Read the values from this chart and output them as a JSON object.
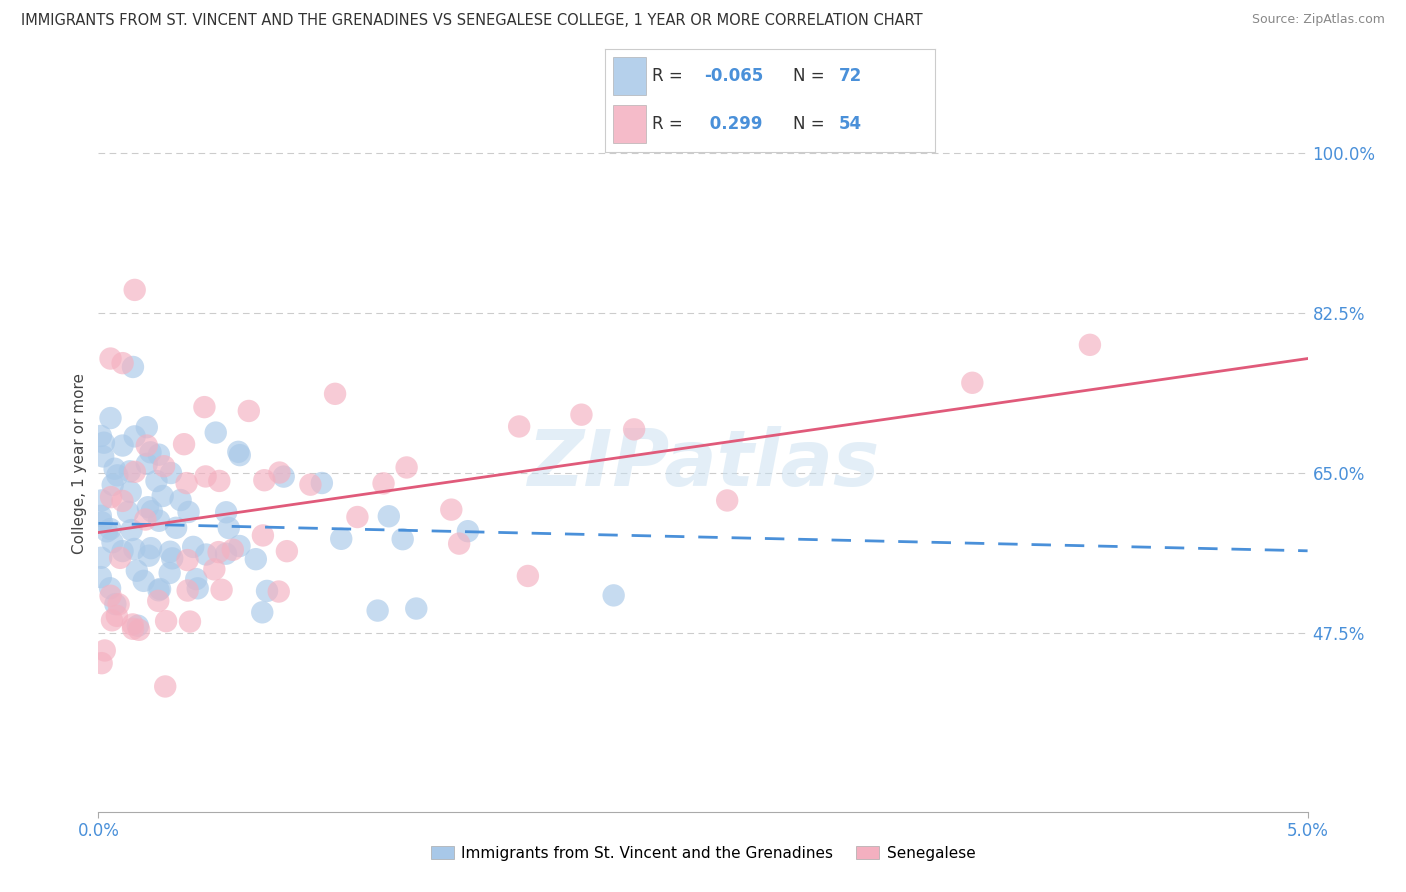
{
  "title": "IMMIGRANTS FROM ST. VINCENT AND THE GRENADINES VS SENEGALESE COLLEGE, 1 YEAR OR MORE CORRELATION CHART",
  "source": "Source: ZipAtlas.com",
  "ylabel": "College, 1 year or more",
  "xmin": 0.0,
  "xmax": 0.05,
  "ymin": 0.28,
  "ymax": 1.04,
  "ytick_positions": [
    0.475,
    0.65,
    0.825,
    1.0
  ],
  "ytick_labels": [
    "47.5%",
    "65.0%",
    "82.5%",
    "100.0%"
  ],
  "grid_color": "#cccccc",
  "background_color": "#ffffff",
  "blue_color": "#a8c8e8",
  "pink_color": "#f4b0c0",
  "blue_line_color": "#4a90d9",
  "pink_line_color": "#e05a7a",
  "blue_R": -0.065,
  "blue_N": 72,
  "pink_R": 0.299,
  "pink_N": 54,
  "blue_label": "Immigrants from St. Vincent and the Grenadines",
  "pink_label": "Senegalese",
  "watermark": "ZIPatlas",
  "blue_line_x0": 0.0,
  "blue_line_y0": 0.595,
  "blue_line_x1": 0.05,
  "blue_line_y1": 0.565,
  "pink_line_x0": 0.0,
  "pink_line_y0": 0.585,
  "pink_line_x1": 0.05,
  "pink_line_y1": 0.775
}
